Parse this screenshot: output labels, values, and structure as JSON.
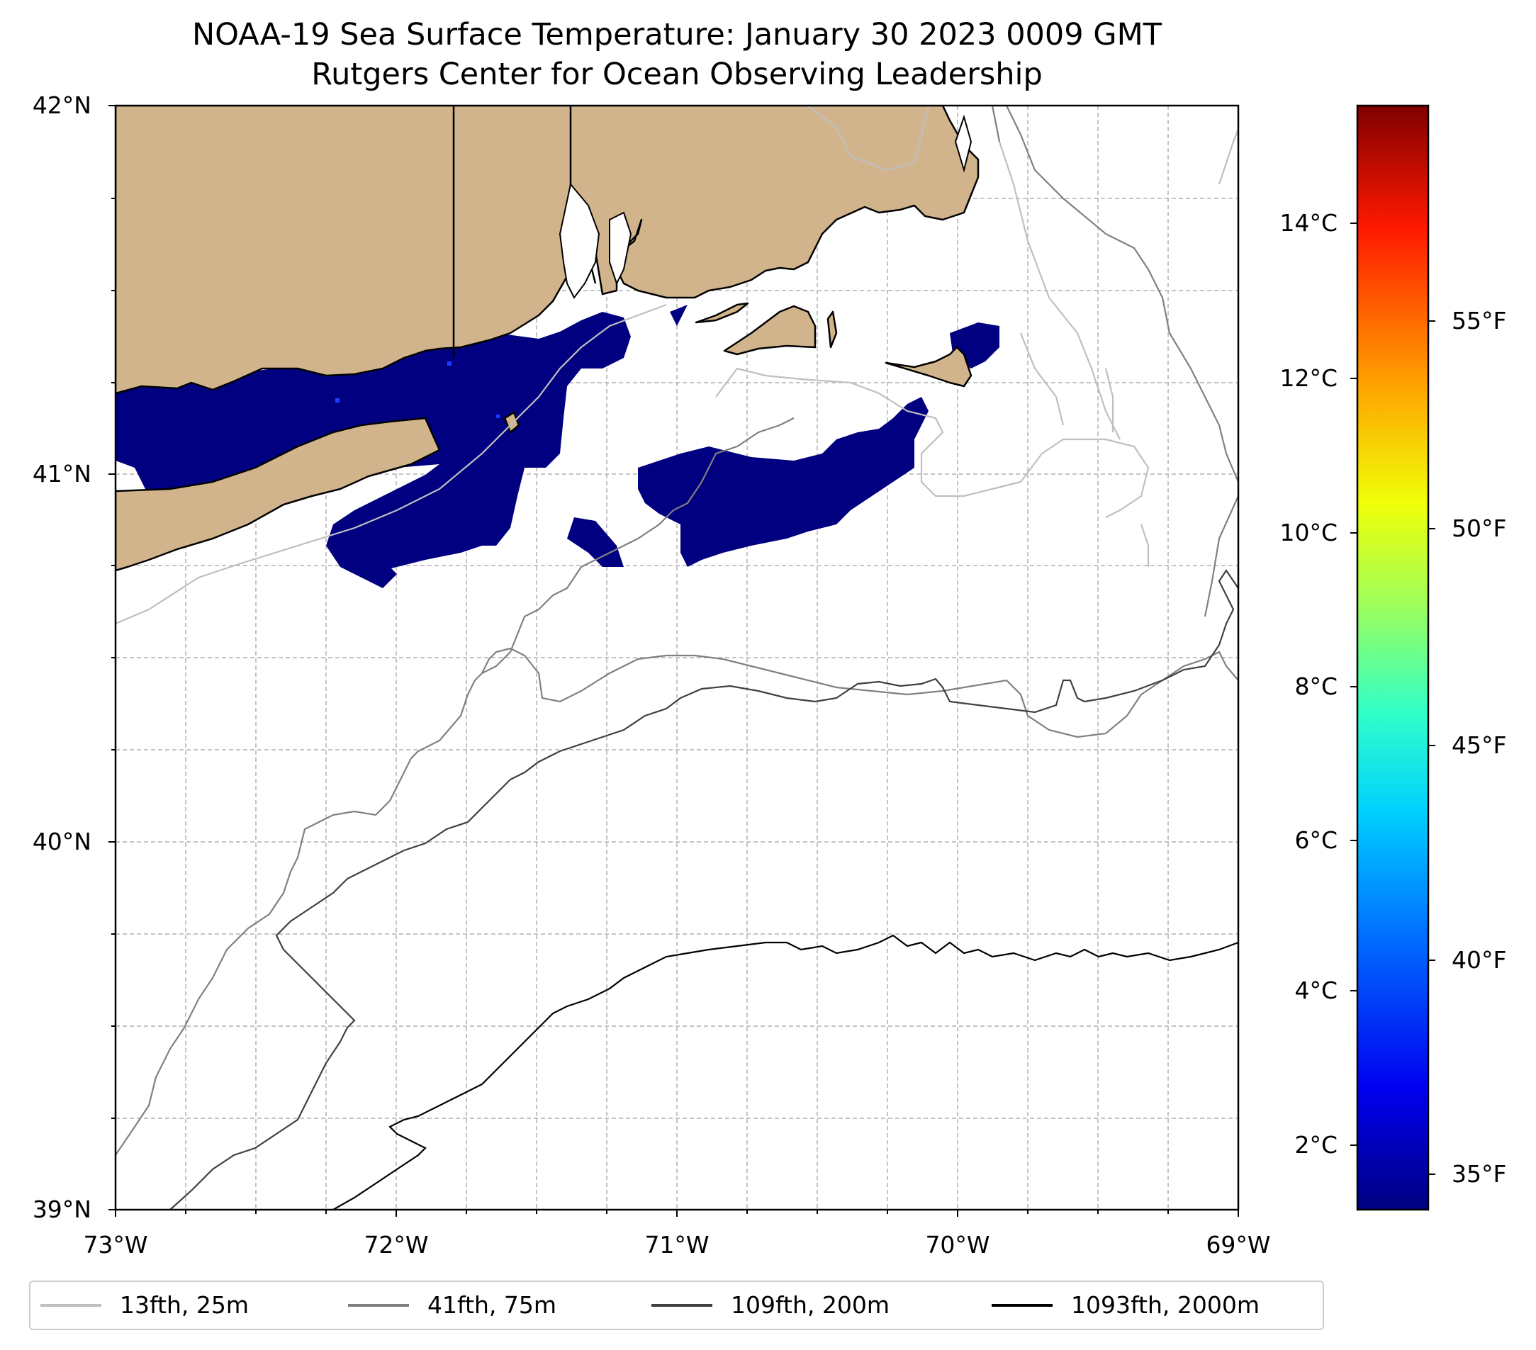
{
  "title": {
    "line1": "NOAA-19 Sea Surface Temperature: January 30 2023 0009 GMT",
    "line2": "Rutgers Center for Ocean Observing Leadership"
  },
  "map": {
    "lat_labels": [
      "42°N",
      "41°N",
      "40°N",
      "39°N"
    ],
    "lon_labels": [
      "73°W",
      "72°W",
      "71°W",
      "70°W",
      "69°W"
    ],
    "lat_range": [
      39,
      42
    ],
    "lon_range": [
      -73,
      -69
    ],
    "colors": {
      "land": "#d2b48c",
      "sst_cold": "#000080",
      "sst_warm_spot": "#1f3cff",
      "gridline": "#b0b0b0"
    }
  },
  "colorbar": {
    "celsius_labels": [
      "14°C",
      "12°C",
      "10°C",
      "8°C",
      "6°C",
      "4°C",
      "2°C"
    ],
    "fahrenheit_labels": [
      "55°F",
      "50°F",
      "45°F",
      "40°F",
      "35°F"
    ],
    "colors": [
      "#000080",
      "#0000ff",
      "#0080ff",
      "#00e4f8",
      "#4dffa8",
      "#a8ff4d",
      "#f8f800",
      "#ff9800",
      "#ff2000",
      "#800000"
    ]
  },
  "legend": {
    "items": [
      {
        "label": "13fth, 25m",
        "color": "#bfbfbf"
      },
      {
        "label": "41fth, 75m",
        "color": "#808080"
      },
      {
        "label": "109fth, 200m",
        "color": "#404040"
      },
      {
        "label": "1093fth, 2000m",
        "color": "#000000"
      }
    ]
  }
}
